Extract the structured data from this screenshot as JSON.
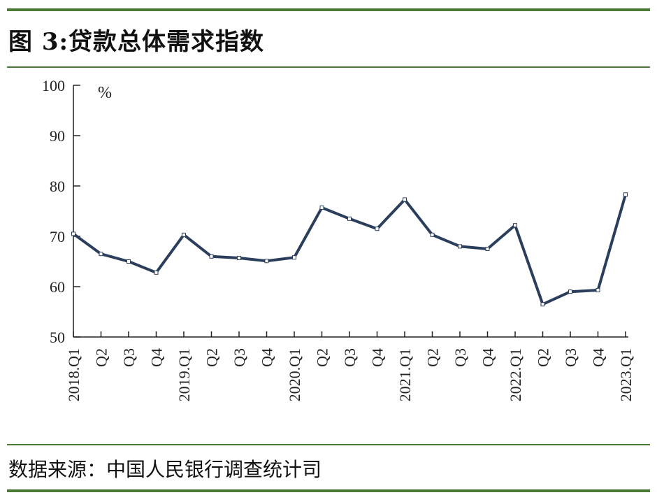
{
  "figure": {
    "title": "图 3:贷款总体需求指数",
    "source": "数据来源：中国人民银行调查统计司"
  },
  "chart_data": {
    "type": "line",
    "title": "图 3:贷款总体需求指数",
    "ylabel": "%",
    "xlabel": "",
    "ylim": [
      50,
      100
    ],
    "yticks": [
      50,
      60,
      70,
      80,
      90,
      100
    ],
    "grid": false,
    "line_color": "#2b3f5c",
    "categories": [
      "2018.Q1",
      "Q2",
      "Q3",
      "Q4",
      "2019.Q1",
      "Q2",
      "Q3",
      "Q4",
      "2020.Q1",
      "Q2",
      "Q3",
      "Q4",
      "2021.Q1",
      "Q2",
      "Q3",
      "Q4",
      "2022.Q1",
      "Q2",
      "Q3",
      "Q4",
      "2023.Q1"
    ],
    "series": [
      {
        "values": [
          70.5,
          66.5,
          65.0,
          62.8,
          70.3,
          66.0,
          65.7,
          65.1,
          65.8,
          75.7,
          73.5,
          71.5,
          77.3,
          70.3,
          68.0,
          67.5,
          72.2,
          56.5,
          59.0,
          59.3,
          78.3
        ]
      }
    ]
  }
}
